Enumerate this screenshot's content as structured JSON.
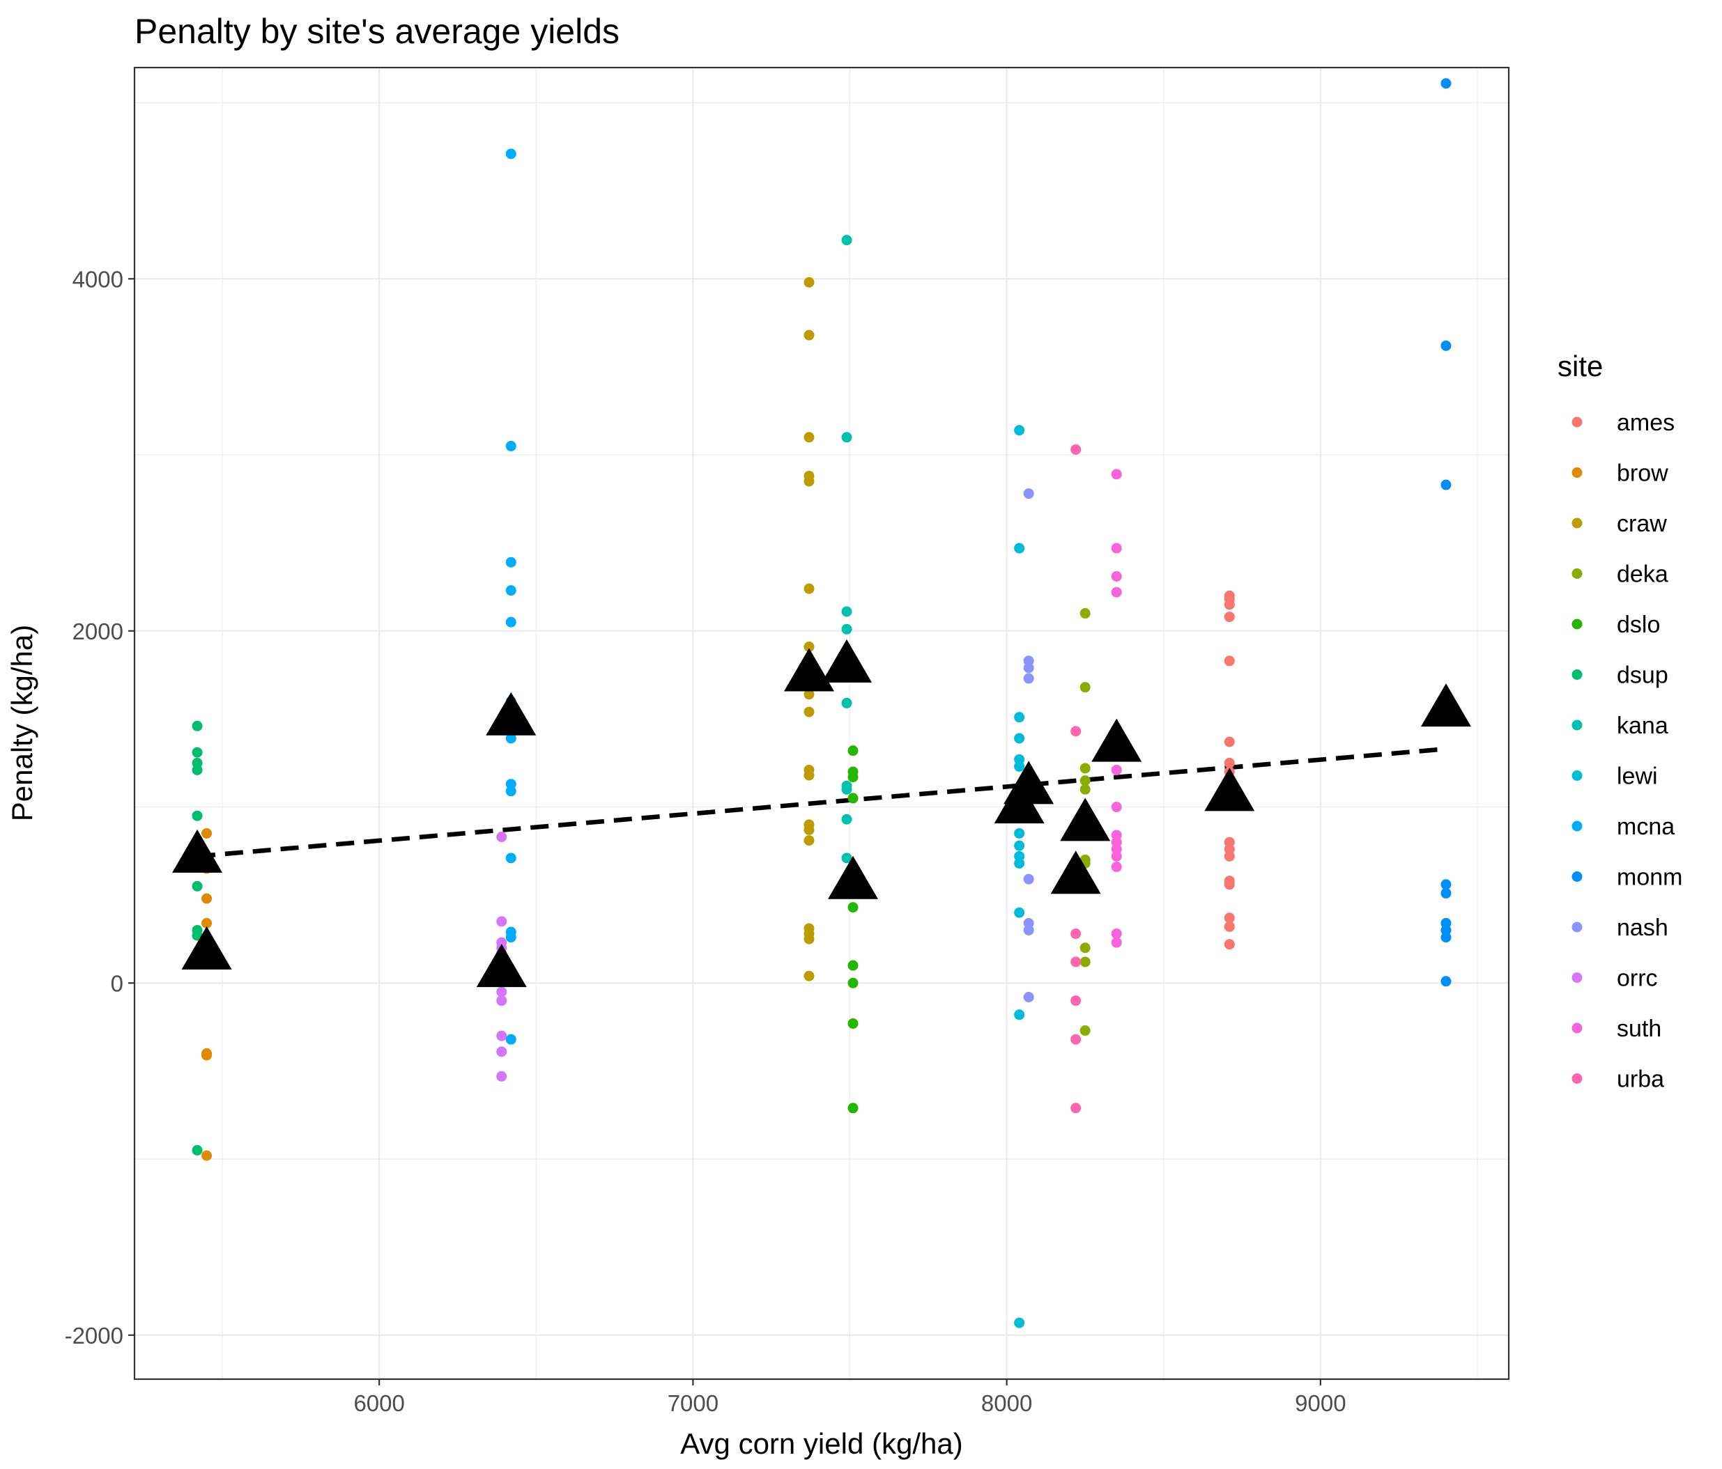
{
  "chart_data": {
    "type": "scatter",
    "title": "Penalty by site's average yields",
    "xlabel": "Avg corn yield (kg/ha)",
    "ylabel": "Penalty (kg/ha)",
    "xlim": [
      5220,
      9600
    ],
    "ylim": [
      -2250,
      5200
    ],
    "x_ticks": [
      6000,
      7000,
      8000,
      9000
    ],
    "x_minor_ticks": [
      5500,
      6500,
      7500,
      8500,
      9500
    ],
    "y_ticks": [
      -2000,
      0,
      2000,
      4000
    ],
    "y_minor_ticks": [
      -1000,
      1000,
      3000,
      5000
    ],
    "grid": true,
    "legend": {
      "title": "site",
      "position": "right"
    },
    "series": [
      {
        "name": "ames",
        "color": "#F8766D",
        "x": 8710,
        "y": [
          2200,
          2180,
          2150,
          2080,
          1830,
          1370,
          1250,
          1200,
          800,
          760,
          720,
          580,
          560,
          370,
          320,
          220
        ]
      },
      {
        "name": "brow",
        "color": "#E18A00",
        "x": 5450,
        "y": [
          850,
          650,
          480,
          340,
          -400,
          -410,
          -980
        ]
      },
      {
        "name": "craw",
        "color": "#BE9C00",
        "x": 7370,
        "y": [
          3980,
          3680,
          3100,
          2880,
          2850,
          2240,
          1910,
          1640,
          1540,
          1210,
          1180,
          900,
          870,
          810,
          310,
          280,
          250,
          40
        ]
      },
      {
        "name": "deka",
        "color": "#8CAB00",
        "x": 8250,
        "y": [
          2100,
          1680,
          1220,
          1150,
          1100,
          700,
          680,
          200,
          120,
          -270
        ]
      },
      {
        "name": "dslo",
        "color": "#24B700",
        "x": 7510,
        "y": [
          1320,
          1200,
          1170,
          1050,
          430,
          100,
          0,
          -230,
          -710
        ]
      },
      {
        "name": "dsup",
        "color": "#00BE70",
        "x": 5420,
        "y": [
          1460,
          1310,
          1250,
          1210,
          950,
          550,
          300,
          270,
          -950
        ]
      },
      {
        "name": "kana",
        "color": "#00C1AB",
        "x": 7490,
        "y": [
          4220,
          3100,
          2110,
          2010,
          1590,
          1120,
          1100,
          930,
          710
        ]
      },
      {
        "name": "lewi",
        "color": "#00BBDA",
        "x": 8040,
        "y": [
          3140,
          2470,
          1510,
          1390,
          1270,
          1230,
          850,
          780,
          720,
          680,
          400,
          -180,
          -1930
        ]
      },
      {
        "name": "mcna",
        "color": "#00ACFC",
        "x": 6420,
        "y": [
          4710,
          3050,
          2390,
          2230,
          2050,
          1600,
          1390,
          1130,
          1090,
          710,
          290,
          260,
          -320
        ]
      },
      {
        "name": "monm",
        "color": "#008FF8",
        "x": 9400,
        "y": [
          5110,
          3620,
          2830,
          560,
          510,
          340,
          300,
          260,
          10
        ]
      },
      {
        "name": "nash",
        "color": "#8B93FF",
        "x": 8070,
        "y": [
          2780,
          1830,
          1790,
          1730,
          590,
          340,
          300,
          -80
        ]
      },
      {
        "name": "orrc",
        "color": "#D575FE",
        "x": 6390,
        "y": [
          830,
          350,
          230,
          200,
          170,
          -50,
          -100,
          -300,
          -390,
          -530
        ]
      },
      {
        "name": "suth",
        "color": "#F962DD",
        "x": 8350,
        "y": [
          2890,
          2470,
          2310,
          2220,
          1210,
          1000,
          840,
          800,
          760,
          720,
          660,
          280,
          230
        ]
      },
      {
        "name": "urba",
        "color": "#FF65AC",
        "x": 8220,
        "y": [
          3030,
          1430,
          280,
          120,
          -100,
          -320,
          -710
        ]
      }
    ],
    "averages": {
      "marker": "triangle",
      "color": "#000000",
      "points": [
        {
          "site": "ames",
          "x": 8710,
          "y": 1070
        },
        {
          "site": "brow",
          "x": 5450,
          "y": 170
        },
        {
          "site": "craw",
          "x": 7370,
          "y": 1750
        },
        {
          "site": "deka",
          "x": 8250,
          "y": 900
        },
        {
          "site": "dslo",
          "x": 7510,
          "y": 570
        },
        {
          "site": "dsup",
          "x": 5420,
          "y": 720
        },
        {
          "site": "kana",
          "x": 7490,
          "y": 1800
        },
        {
          "site": "lewi",
          "x": 8040,
          "y": 1000
        },
        {
          "site": "mcna",
          "x": 6420,
          "y": 1500
        },
        {
          "site": "monm",
          "x": 9400,
          "y": 1550
        },
        {
          "site": "nash",
          "x": 8070,
          "y": 1110
        },
        {
          "site": "orrc",
          "x": 6390,
          "y": 70
        },
        {
          "site": "suth",
          "x": 8350,
          "y": 1350
        },
        {
          "site": "urba",
          "x": 8220,
          "y": 600
        }
      ]
    },
    "trend_line": {
      "style": "dashed",
      "color": "#000000",
      "x": [
        5420,
        9400
      ],
      "y": [
        720,
        1330
      ]
    }
  }
}
